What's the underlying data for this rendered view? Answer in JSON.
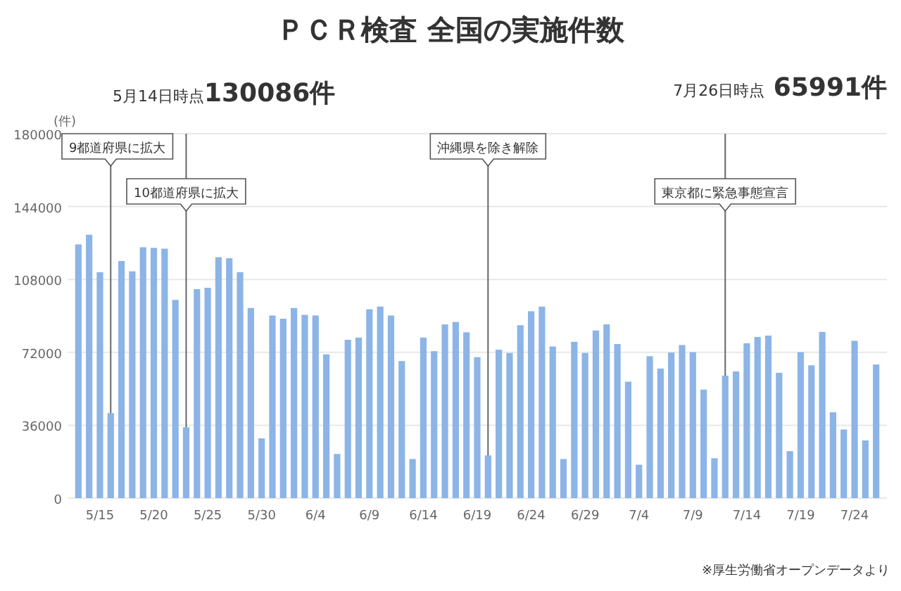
{
  "chart_data": {
    "type": "bar",
    "title": "ＰＣＲ検査 全国の実施件数",
    "ylabel": "(件)",
    "x": [
      "--05-13",
      "--05-14",
      "--05-15",
      "--05-16",
      "--05-17",
      "--05-18",
      "--05-19",
      "--05-20",
      "--05-21",
      "--05-22",
      "--05-23",
      "--05-24",
      "--05-25",
      "--05-26",
      "--05-27",
      "--05-28",
      "--05-29",
      "--05-30",
      "--05-31",
      "--06-01",
      "--06-02",
      "--06-03",
      "--06-04",
      "--06-05",
      "--06-06",
      "--06-07",
      "--06-08",
      "--06-09",
      "--06-10",
      "--06-11",
      "--06-12",
      "--06-13",
      "--06-14",
      "--06-15",
      "--06-16",
      "--06-17",
      "--06-18",
      "--06-19",
      "--06-20",
      "--06-21",
      "--06-22",
      "--06-23",
      "--06-24",
      "--06-25",
      "--06-26",
      "--06-27",
      "--06-28",
      "--06-29",
      "--06-30",
      "--07-01",
      "--07-02",
      "--07-03",
      "--07-04",
      "--07-05",
      "--07-06",
      "--07-07",
      "--07-08",
      "--07-09",
      "--07-10",
      "--07-11",
      "--07-12",
      "--07-13",
      "--07-14",
      "--07-15",
      "--07-16",
      "--07-17",
      "--07-18",
      "--07-19",
      "--07-20",
      "--07-21",
      "--07-22",
      "--07-23",
      "--07-24",
      "--07-25",
      "--07-26"
    ],
    "values": [
      125300,
      130086,
      111600,
      42000,
      117100,
      112000,
      123900,
      123600,
      123200,
      97900,
      35000,
      103200,
      103900,
      119000,
      118500,
      111600,
      93900,
      29500,
      90200,
      88600,
      93900,
      90500,
      90200,
      71000,
      21800,
      78200,
      79300,
      93300,
      94600,
      90200,
      67700,
      19300,
      79300,
      72600,
      85800,
      87000,
      81900,
      69600,
      21100,
      73300,
      71700,
      85400,
      92300,
      94600,
      74900,
      19300,
      77200,
      71700,
      82800,
      85800,
      76100,
      57500,
      16500,
      70100,
      64000,
      71900,
      75600,
      72100,
      53600,
      19700,
      60500,
      62600,
      76500,
      79600,
      80300,
      61900,
      23200,
      72100,
      65600,
      82100,
      42400,
      33900,
      77700,
      28500,
      65991
    ],
    "color": "#8cb4e6",
    "xlim": [
      "--05-12",
      "--07-27"
    ],
    "xticks": [
      {
        "value": "--05-15",
        "label": "5/15"
      },
      {
        "value": "--05-20",
        "label": "5/20"
      },
      {
        "value": "--05-25",
        "label": "5/25"
      },
      {
        "value": "--05-30",
        "label": "5/30"
      },
      {
        "value": "--06-04",
        "label": "6/4"
      },
      {
        "value": "--06-09",
        "label": "6/9"
      },
      {
        "value": "--06-14",
        "label": "6/14"
      },
      {
        "value": "--06-19",
        "label": "6/19"
      },
      {
        "value": "--06-24",
        "label": "6/24"
      },
      {
        "value": "--06-29",
        "label": "6/29"
      },
      {
        "value": "--07-04",
        "label": "7/4"
      },
      {
        "value": "--07-09",
        "label": "7/9"
      },
      {
        "value": "--07-14",
        "label": "7/14"
      },
      {
        "value": "--07-19",
        "label": "7/19"
      },
      {
        "value": "--07-24",
        "label": "7/24"
      }
    ],
    "ylim": [
      0,
      180000
    ],
    "yticks": [
      0,
      36000,
      72000,
      108000,
      144000,
      180000
    ],
    "grid": "y",
    "ref_lines": [
      {
        "axis": "x",
        "value": "--05-16",
        "label": "9都道府県に拡大",
        "color": "#666666"
      },
      {
        "axis": "x",
        "value": "--05-23",
        "label": "10都道府県に拡大",
        "color": "#666666"
      },
      {
        "axis": "x",
        "value": "--06-20",
        "label": "沖縄県を除き解除",
        "color": "#666666"
      },
      {
        "axis": "x",
        "value": "--07-12",
        "label": "東京都に緊急事態宣言",
        "color": "#666666"
      }
    ],
    "annotations": [
      "5月14日時点130086件",
      "7月26日時点 65991件",
      "※厚生労働省オープンデータより"
    ]
  }
}
